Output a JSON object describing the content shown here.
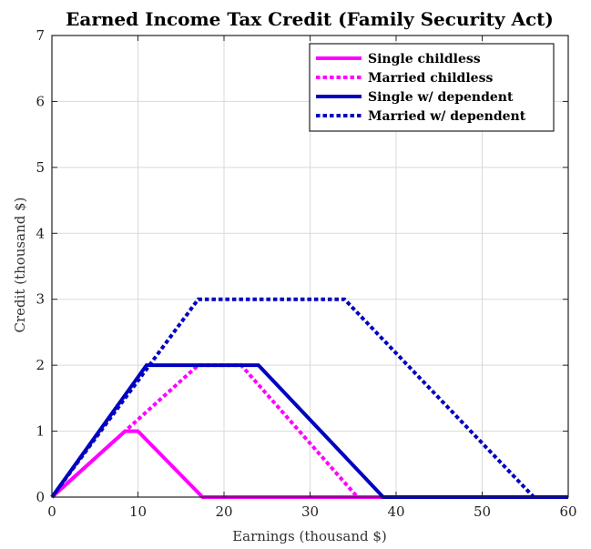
{
  "chart_data": {
    "type": "line",
    "title": "Earned Income Tax Credit (Family Security Act)",
    "xlabel": "Earnings (thousand $)",
    "ylabel": "Credit (thousand $)",
    "xlim": [
      0,
      60
    ],
    "ylim": [
      0,
      7
    ],
    "xticks": [
      0,
      10,
      20,
      30,
      40,
      50,
      60
    ],
    "yticks": [
      0,
      1,
      2,
      3,
      4,
      5,
      6,
      7
    ],
    "grid": true,
    "legend_position": "top-right",
    "series": [
      {
        "name": "Single childless",
        "color": "#ff00ff",
        "style": "solid",
        "x": [
          0,
          8.5,
          10,
          17.5,
          60
        ],
        "y": [
          0,
          1,
          1,
          0,
          0
        ]
      },
      {
        "name": "Married childless",
        "color": "#ff00ff",
        "style": "dotted",
        "x": [
          0,
          17,
          22,
          35.5,
          60
        ],
        "y": [
          0,
          2,
          2,
          0,
          0
        ]
      },
      {
        "name": "Single w/ dependent",
        "color": "#0000c0",
        "style": "solid",
        "x": [
          0,
          11,
          24,
          38.5,
          60
        ],
        "y": [
          0,
          2,
          2,
          0,
          0
        ]
      },
      {
        "name": "Married w/ dependent",
        "color": "#0000c0",
        "style": "dotted",
        "x": [
          0,
          17,
          34,
          56,
          60
        ],
        "y": [
          0,
          3,
          3,
          0,
          0
        ]
      }
    ]
  }
}
